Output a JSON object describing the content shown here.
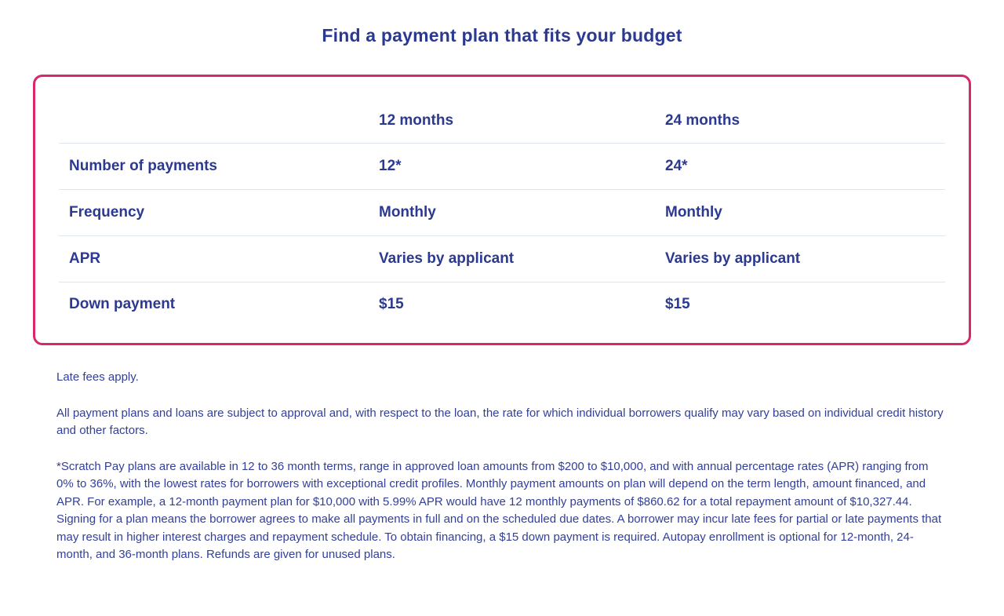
{
  "page": {
    "title": "Find a payment plan that fits your budget"
  },
  "table": {
    "columns": [
      "",
      "12 months",
      "24 months"
    ],
    "rows": [
      {
        "label": "Number of payments",
        "values": [
          "12*",
          "24*"
        ]
      },
      {
        "label": "Frequency",
        "values": [
          "Monthly",
          "Monthly"
        ]
      },
      {
        "label": "APR",
        "values": [
          "Varies by applicant",
          "Varies by applicant"
        ]
      },
      {
        "label": "Down payment",
        "values": [
          "$15",
          "$15"
        ]
      }
    ]
  },
  "disclaimers": {
    "late_fees": "Late fees apply.",
    "approval": "All payment plans and loans are subject to approval and, with respect to the loan, the rate for which individual borrowers qualify may vary based on individual credit history and other factors.",
    "details": "*Scratch Pay plans are available in 12 to 36 month terms, range in approved loan amounts from $200 to $10,000, and with annual percentage rates (APR) ranging from 0% to 36%, with the lowest rates for borrowers with exceptional credit profiles. Monthly payment amounts on plan will depend on the term length, amount financed, and APR. For example, a 12-month payment plan for $10,000 with 5.99% APR would have 12 monthly payments of $860.62 for a total repayment amount of $10,327.44. Signing for a plan means the borrower agrees to make all payments in full and on the scheduled due dates. A borrower may incur late fees for partial or late payments that may result in higher interest charges and repayment schedule. To obtain financing, a $15 down payment is required. Autopay enrollment is optional for 12-month, 24-month, and 36-month plans. Refunds are given for unused plans."
  },
  "colors": {
    "navy_text": "#2b3990",
    "pink_border": "#d8276b",
    "divider": "#dfe4f3"
  }
}
